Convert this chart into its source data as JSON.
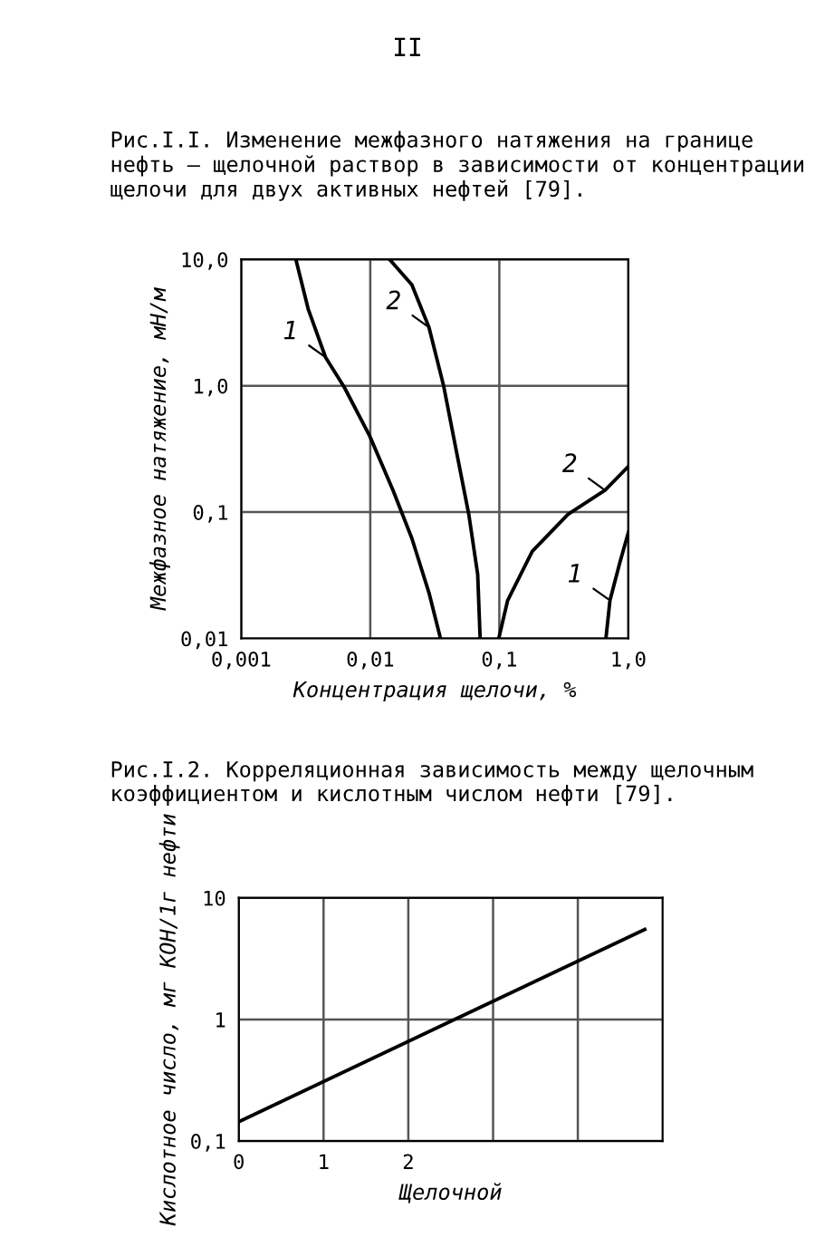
{
  "chart_data": [
    {
      "type": "line",
      "title": "Рис.I.I. Изменение межфазного натяжения на границе нефть – щелочной раствор в зависимости от концентрации щелочи для двух активных нефтей [79].",
      "xlabel": "Концентрация щелочи, %",
      "ylabel": "Межфазное натяжение, мН/м",
      "log": "xy",
      "xlim": [
        0.001,
        1.0
      ],
      "ylim": [
        0.01,
        10.0
      ],
      "xticks": [
        {
          "value": 0.001,
          "label": "0,001"
        },
        {
          "value": 0.01,
          "label": "0,01"
        },
        {
          "value": 0.1,
          "label": "0,1"
        },
        {
          "value": 1.0,
          "label": "1,0"
        }
      ],
      "yticks": [
        {
          "value": 0.01,
          "label": "0,01"
        },
        {
          "value": 0.1,
          "label": "0,1"
        },
        {
          "value": 1.0,
          "label": "1,0"
        },
        {
          "value": 10.0,
          "label": "10,0"
        }
      ],
      "grid": true,
      "marker": "none",
      "line_style": "solid",
      "series": [
        {
          "color": "#000000",
          "x": [
            0.00265,
            0.0033,
            0.0045,
            0.0063,
            0.0099,
            0.015,
            0.021,
            0.0285,
            0.035
          ],
          "values": [
            10.0,
            4.06,
            1.68,
            0.97,
            0.4,
            0.149,
            0.062,
            0.023,
            0.01
          ]
        },
        {
          "color": "#000000",
          "x": [
            0.0141,
            0.021,
            0.0285,
            0.037,
            0.046,
            0.058,
            0.068,
            0.071
          ],
          "values": [
            10.0,
            6.3,
            2.9,
            1.0,
            0.32,
            0.096,
            0.032,
            0.01
          ]
        },
        {
          "color": "#000000",
          "x": [
            0.099,
            0.116,
            0.18,
            0.34,
            0.66,
            1.0
          ],
          "values": [
            0.01,
            0.02,
            0.049,
            0.096,
            0.149,
            0.23
          ]
        },
        {
          "color": "#000000",
          "x": [
            0.67,
            0.72,
            0.86,
            1.0
          ],
          "values": [
            0.01,
            0.02,
            0.04,
            0.069
          ]
        }
      ],
      "annotations": [
        "II",
        {
          "text": "1",
          "x": 0.0045,
          "y": 1.68
        },
        {
          "text": "2",
          "x": 0.0285,
          "y": 2.9
        },
        {
          "text": "2",
          "x": 0.66,
          "y": 0.149
        },
        {
          "text": "1",
          "x": 0.72,
          "y": 0.02
        }
      ]
    },
    {
      "type": "line",
      "title": "Рис.I.2. Корреляционная зависимость между щелочным коэффициентом и кислотным числом нефти [79].",
      "xlabel": "Щелочной",
      "ylabel": "Кислотное число, мг КОН/1г нефти",
      "log": "y",
      "xlim": [
        0,
        5
      ],
      "ylim": [
        0.1,
        10
      ],
      "xticks": [
        0,
        1,
        2,
        {
          "value": 3,
          "label": null
        },
        {
          "value": 4,
          "label": null
        }
      ],
      "yticks": [
        {
          "value": 0.1,
          "label": "0,1"
        },
        1,
        10
      ],
      "grid": true,
      "marker": "none",
      "line_style": "solid",
      "series": [
        {
          "color": "#000000",
          "x": [
            0,
            4.79
          ],
          "values": [
            0.144,
            5.5
          ]
        }
      ]
    }
  ]
}
